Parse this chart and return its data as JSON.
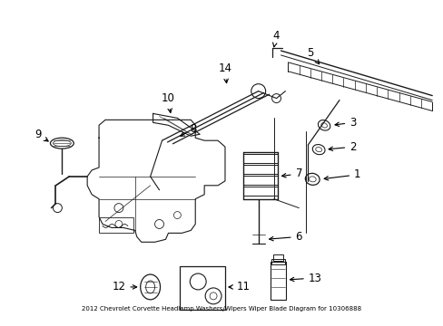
{
  "title": "2012 Chevrolet Corvette Headlamp Washers/Wipers Wiper Blade Diagram for 10306888",
  "bg_color": "#ffffff",
  "line_color": "#1a1a1a",
  "fig_width": 4.89,
  "fig_height": 3.6,
  "dpi": 100
}
